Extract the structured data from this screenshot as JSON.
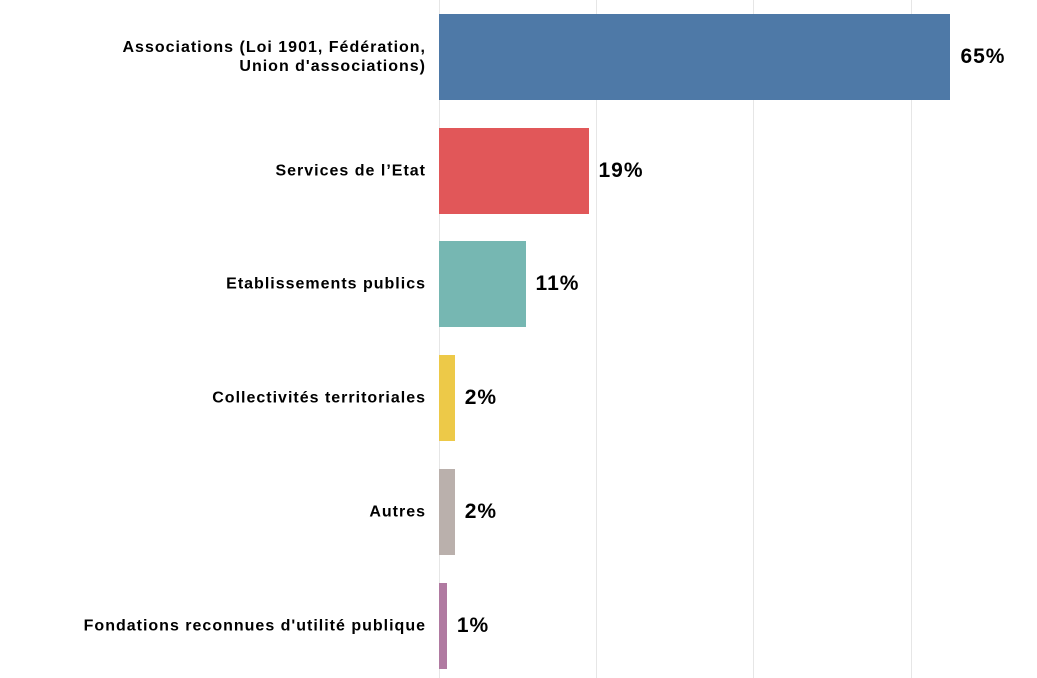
{
  "chart_data": {
    "type": "bar",
    "orientation": "horizontal",
    "categories": [
      "Associations (Loi 1901, Fédération, Union d'associations)",
      "Services de l’Etat",
      "Etablissements publics",
      "Collectivités territoriales",
      "Autres",
      "Fondations reconnues d'utilité publique"
    ],
    "values": [
      65,
      19,
      11,
      2,
      2,
      1
    ],
    "value_labels": [
      "65%",
      "19%",
      "11%",
      "2%",
      "2%",
      "1%"
    ],
    "colors": [
      "#4e79a7",
      "#e15759",
      "#76b7b2",
      "#edc948",
      "#bab0ac",
      "#b07aa1"
    ],
    "xlim": [
      0,
      76
    ],
    "xticks": [
      0,
      20,
      40,
      60
    ],
    "grid": true
  }
}
